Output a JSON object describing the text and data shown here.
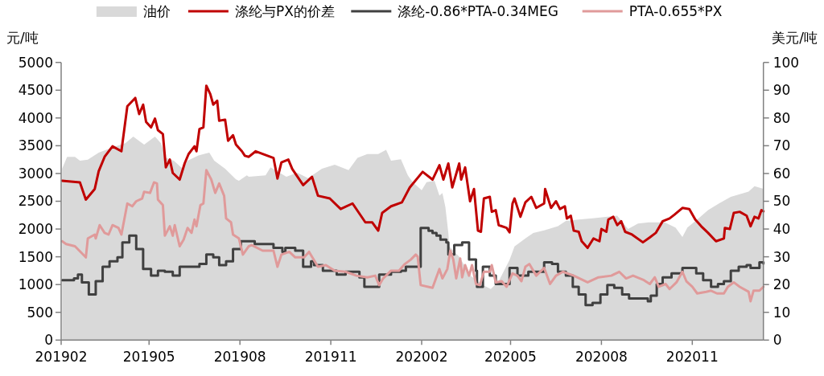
{
  "chart_data": {
    "type": "line",
    "ylabel": "元/吨",
    "y2label": "美元/吨",
    "legend": "top",
    "xlim": [
      "2019-02-01",
      "2021-01-12"
    ],
    "xticks": [
      {
        "value": "2019-02-01",
        "label": "201902"
      },
      {
        "value": "2019-05-01",
        "label": "201905"
      },
      {
        "value": "2019-08-01",
        "label": "201908"
      },
      {
        "value": "2019-11-01",
        "label": "201911"
      },
      {
        "value": "2020-02-01",
        "label": "202002"
      },
      {
        "value": "2020-05-01",
        "label": "202005"
      },
      {
        "value": "2020-08-01",
        "label": "202008"
      },
      {
        "value": "2020-11-01",
        "label": "202011"
      }
    ],
    "ylim": [
      0,
      5000
    ],
    "yticks": [
      0,
      500,
      1000,
      1500,
      2000,
      2500,
      3000,
      3500,
      4000,
      4500,
      5000
    ],
    "y2lim": [
      0,
      100
    ],
    "y2ticks": [
      0,
      10,
      20,
      30,
      40,
      50,
      60,
      70,
      80,
      90,
      100
    ],
    "series": [
      {
        "name": "油价",
        "type": "area",
        "axis": "y2",
        "color": "#d9d9d9",
        "x": [
          "2019-02-02",
          "2019-02-07",
          "2019-02-15",
          "2019-02-20",
          "2019-02-28",
          "2019-03-11",
          "2019-03-25",
          "2019-04-07",
          "2019-04-15",
          "2019-04-26",
          "2019-05-07",
          "2019-05-13",
          "2019-05-18",
          "2019-05-26",
          "2019-06-04",
          "2019-06-09",
          "2019-06-20",
          "2019-07-01",
          "2019-07-06",
          "2019-07-17",
          "2019-07-28",
          "2019-07-31",
          "2019-08-08",
          "2019-08-10",
          "2019-08-27",
          "2019-09-01",
          "2019-09-17",
          "2019-09-28",
          "2019-10-09",
          "2019-10-23",
          "2019-11-05",
          "2019-11-19",
          "2019-11-28",
          "2019-12-08",
          "2019-12-19",
          "2019-12-27",
          "2020-01-01",
          "2020-01-11",
          "2020-01-18",
          "2020-01-23",
          "2020-02-01",
          "2020-02-06",
          "2020-02-14",
          "2020-02-19",
          "2020-02-22",
          "2020-02-25",
          "2020-02-28",
          "2020-02-29",
          "2020-03-10",
          "2020-03-22",
          "2020-04-03",
          "2020-04-11",
          "2020-04-19",
          "2020-04-30",
          "2020-05-05",
          "2020-05-16",
          "2020-05-24",
          "2020-06-04",
          "2020-06-18",
          "2020-06-26",
          "2020-07-09",
          "2020-07-25",
          "2020-08-17",
          "2020-08-28",
          "2020-09-07",
          "2020-09-18",
          "2020-10-04",
          "2020-10-15",
          "2020-10-22",
          "2020-10-27",
          "2020-11-06",
          "2020-11-17",
          "2020-11-28",
          "2020-12-10",
          "2020-12-28",
          "2021-01-03",
          "2021-01-12"
        ],
        "values": [
          61.7,
          66,
          66,
          64.6,
          65,
          67.5,
          69.4,
          70.9,
          73.3,
          70.4,
          73.3,
          70.9,
          65.6,
          64.6,
          61.7,
          64.6,
          66.5,
          67.5,
          64.6,
          61.7,
          57.9,
          57.4,
          59.3,
          58.8,
          59.3,
          62.2,
          58.8,
          60.3,
          58.3,
          61.7,
          63.2,
          61.2,
          65.6,
          67,
          67,
          68.5,
          64.6,
          65.1,
          59.3,
          56.9,
          54,
          56.9,
          57.4,
          52,
          53,
          48,
          38.6,
          33.7,
          30,
          23,
          19.8,
          18.4,
          21.2,
          28.9,
          33.7,
          36.6,
          38.6,
          39.5,
          41,
          42.9,
          43.4,
          43.9,
          44.8,
          40,
          42,
          42.4,
          42.4,
          40.5,
          37.1,
          40.5,
          43.4,
          46.8,
          49.2,
          51.6,
          53.5,
          55.4,
          54.5
        ]
      },
      {
        "name": "涤纶与PX的价差",
        "color": "#c00000",
        "x": [
          "2019-02-02",
          "2019-02-20",
          "2019-02-26",
          "2019-03-07",
          "2019-03-11",
          "2019-03-17",
          "2019-03-25",
          "2019-04-03",
          "2019-04-09",
          "2019-04-17",
          "2019-04-21",
          "2019-04-25",
          "2019-04-28",
          "2019-05-03",
          "2019-05-07",
          "2019-05-10",
          "2019-05-15",
          "2019-05-18",
          "2019-05-22",
          "2019-05-25",
          "2019-06-01",
          "2019-06-06",
          "2019-06-10",
          "2019-06-16",
          "2019-06-18",
          "2019-06-21",
          "2019-06-25",
          "2019-06-28",
          "2019-07-02",
          "2019-07-05",
          "2019-07-09",
          "2019-07-11",
          "2019-07-17",
          "2019-07-20",
          "2019-07-25",
          "2019-07-28",
          "2019-08-03",
          "2019-08-06",
          "2019-08-10",
          "2019-08-17",
          "2019-09-04",
          "2019-09-08",
          "2019-09-12",
          "2019-09-19",
          "2019-09-23",
          "2019-10-04",
          "2019-10-13",
          "2019-10-19",
          "2019-10-31",
          "2019-11-11",
          "2019-11-23",
          "2019-12-06",
          "2019-12-13",
          "2019-12-19",
          "2019-12-23",
          "2020-01-01",
          "2020-01-12",
          "2020-01-20",
          "2020-02-02",
          "2020-02-12",
          "2020-02-19",
          "2020-02-23",
          "2020-02-28",
          "2020-03-03",
          "2020-03-10",
          "2020-03-12",
          "2020-03-16",
          "2020-03-21",
          "2020-03-25",
          "2020-03-29",
          "2020-04-01",
          "2020-04-04",
          "2020-04-10",
          "2020-04-12",
          "2020-04-16",
          "2020-04-19",
          "2020-04-27",
          "2020-04-30",
          "2020-05-03",
          "2020-05-05",
          "2020-05-11",
          "2020-05-16",
          "2020-05-22",
          "2020-05-27",
          "2020-06-04",
          "2020-06-05",
          "2020-06-11",
          "2020-06-16",
          "2020-06-20",
          "2020-06-25",
          "2020-06-27",
          "2020-07-01",
          "2020-07-04",
          "2020-07-09",
          "2020-07-12",
          "2020-07-18",
          "2020-07-24",
          "2020-07-30",
          "2020-08-01",
          "2020-08-06",
          "2020-08-08",
          "2020-08-13",
          "2020-08-17",
          "2020-08-21",
          "2020-08-25",
          "2020-09-01",
          "2020-09-12",
          "2020-09-19",
          "2020-09-25",
          "2020-10-02",
          "2020-10-09",
          "2020-10-14",
          "2020-10-22",
          "2020-10-29",
          "2020-11-04",
          "2020-11-10",
          "2020-11-17",
          "2020-11-25",
          "2020-12-03",
          "2020-12-04",
          "2020-12-09",
          "2020-12-13",
          "2020-12-19",
          "2020-12-26",
          "2020-12-30",
          "2021-01-03",
          "2021-01-07",
          "2021-01-10",
          "2021-01-12"
        ],
        "values": [
          2870,
          2840,
          2530,
          2720,
          3040,
          3300,
          3490,
          3400,
          4210,
          4360,
          4070,
          4240,
          3930,
          3830,
          3990,
          3780,
          3710,
          3110,
          3250,
          3010,
          2890,
          3180,
          3350,
          3490,
          3400,
          3800,
          3830,
          4580,
          4430,
          4240,
          4310,
          3950,
          3970,
          3590,
          3690,
          3520,
          3400,
          3320,
          3300,
          3400,
          3280,
          2910,
          3200,
          3250,
          3080,
          2790,
          2940,
          2600,
          2550,
          2360,
          2460,
          2120,
          2120,
          1970,
          2290,
          2410,
          2480,
          2750,
          3030,
          2890,
          3150,
          2890,
          3180,
          2750,
          3180,
          2890,
          3110,
          2500,
          2720,
          1970,
          1950,
          2550,
          2580,
          2310,
          2340,
          2070,
          2020,
          1940,
          2460,
          2550,
          2220,
          2480,
          2580,
          2380,
          2460,
          2720,
          2380,
          2500,
          2360,
          2410,
          2190,
          2240,
          1970,
          1950,
          1780,
          1660,
          1830,
          1780,
          2000,
          1950,
          2170,
          2220,
          2070,
          2140,
          1950,
          1900,
          1760,
          1850,
          1930,
          2140,
          2190,
          2260,
          2380,
          2360,
          2170,
          2050,
          1930,
          1780,
          1830,
          2020,
          2000,
          2290,
          2310,
          2240,
          2050,
          2220,
          2190,
          2340,
          2320
        ]
      },
      {
        "name": "涤纶-0.86*PTA-0.34MEG",
        "type": "step",
        "color": "#404040",
        "x": [
          "2019-02-02",
          "2019-02-14",
          "2019-02-18",
          "2019-02-22",
          "2019-03-01",
          "2019-03-08",
          "2019-03-15",
          "2019-03-22",
          "2019-03-30",
          "2019-04-04",
          "2019-04-11",
          "2019-04-18",
          "2019-04-25",
          "2019-05-03",
          "2019-05-10",
          "2019-05-17",
          "2019-05-25",
          "2019-06-01",
          "2019-06-21",
          "2019-06-28",
          "2019-07-05",
          "2019-07-11",
          "2019-07-18",
          "2019-07-25",
          "2019-08-02",
          "2019-08-16",
          "2019-09-04",
          "2019-09-13",
          "2019-09-16",
          "2019-09-26",
          "2019-10-04",
          "2019-10-12",
          "2019-10-15",
          "2019-10-24",
          "2019-11-07",
          "2019-11-16",
          "2019-11-30",
          "2019-12-05",
          "2019-12-20",
          "2020-01-01",
          "2020-01-11",
          "2020-01-16",
          "2020-01-31",
          "2020-02-08",
          "2020-02-12",
          "2020-02-16",
          "2020-02-20",
          "2020-02-26",
          "2020-02-28",
          "2020-03-05",
          "2020-03-13",
          "2020-03-20",
          "2020-03-27",
          "2020-03-28",
          "2020-04-03",
          "2020-04-10",
          "2020-04-16",
          "2020-04-30",
          "2020-05-08",
          "2020-05-19",
          "2020-06-04",
          "2020-06-12",
          "2020-06-18",
          "2020-06-26",
          "2020-07-03",
          "2020-07-09",
          "2020-07-16",
          "2020-07-23",
          "2020-07-31",
          "2020-08-07",
          "2020-08-14",
          "2020-08-22",
          "2020-08-29",
          "2020-09-17",
          "2020-09-20",
          "2020-09-26",
          "2020-10-02",
          "2020-10-11",
          "2020-10-22",
          "2020-11-05",
          "2020-11-12",
          "2020-11-20",
          "2020-11-27",
          "2020-12-03",
          "2020-12-10",
          "2020-12-18",
          "2020-12-26",
          "2020-12-30",
          "2021-01-08",
          "2021-01-12"
        ],
        "values": [
          1080,
          1110,
          1180,
          1040,
          820,
          1060,
          1320,
          1420,
          1490,
          1760,
          1880,
          1640,
          1280,
          1160,
          1250,
          1230,
          1160,
          1320,
          1370,
          1540,
          1490,
          1350,
          1420,
          1640,
          1780,
          1730,
          1660,
          1590,
          1660,
          1610,
          1320,
          1420,
          1350,
          1250,
          1180,
          1230,
          1130,
          960,
          1180,
          1230,
          1250,
          1320,
          2020,
          1970,
          1930,
          1880,
          1810,
          1760,
          1540,
          1710,
          1760,
          1450,
          1250,
          960,
          1320,
          1160,
          1010,
          1300,
          1160,
          1230,
          1400,
          1370,
          1230,
          1160,
          960,
          820,
          630,
          670,
          820,
          990,
          940,
          820,
          750,
          700,
          800,
          1010,
          1130,
          1200,
          1300,
          1200,
          1080,
          960,
          1010,
          1060,
          1250,
          1320,
          1350,
          1300,
          1400,
          1380
        ]
      },
      {
        "name": "PTA-0.655*PX",
        "color": "#e09a9a",
        "x": [
          "2019-02-02",
          "2019-02-06",
          "2019-02-15",
          "2019-02-26",
          "2019-02-28",
          "2019-03-07",
          "2019-03-08",
          "2019-03-12",
          "2019-03-17",
          "2019-03-21",
          "2019-03-25",
          "2019-03-31",
          "2019-04-03",
          "2019-04-09",
          "2019-04-14",
          "2019-04-18",
          "2019-04-24",
          "2019-04-26",
          "2019-05-02",
          "2019-05-06",
          "2019-05-09",
          "2019-05-10",
          "2019-05-15",
          "2019-05-17",
          "2019-05-22",
          "2019-05-25",
          "2019-05-27",
          "2019-06-01",
          "2019-06-05",
          "2019-06-09",
          "2019-06-13",
          "2019-06-16",
          "2019-06-18",
          "2019-06-22",
          "2019-06-25",
          "2019-06-28",
          "2019-07-03",
          "2019-07-07",
          "2019-07-11",
          "2019-07-16",
          "2019-07-18",
          "2019-07-23",
          "2019-07-25",
          "2019-07-31",
          "2019-08-04",
          "2019-08-10",
          "2019-08-13",
          "2019-08-24",
          "2019-09-04",
          "2019-09-08",
          "2019-09-12",
          "2019-09-20",
          "2019-09-26",
          "2019-10-05",
          "2019-10-10",
          "2019-10-19",
          "2019-10-27",
          "2019-11-05",
          "2019-11-16",
          "2019-11-27",
          "2019-12-08",
          "2019-12-16",
          "2019-12-20",
          "2019-12-24",
          "2020-01-01",
          "2020-01-09",
          "2020-01-15",
          "2020-01-21",
          "2020-01-26",
          "2020-01-28",
          "2020-01-31",
          "2020-02-12",
          "2020-02-19",
          "2020-02-22",
          "2020-02-27",
          "2020-03-01",
          "2020-03-04",
          "2020-03-07",
          "2020-03-11",
          "2020-03-13",
          "2020-03-16",
          "2020-03-20",
          "2020-03-23",
          "2020-03-27",
          "2020-03-31",
          "2020-04-04",
          "2020-04-10",
          "2020-04-12",
          "2020-04-16",
          "2020-04-22",
          "2020-04-27",
          "2020-05-03",
          "2020-05-08",
          "2020-05-12",
          "2020-05-16",
          "2020-05-20",
          "2020-05-27",
          "2020-06-04",
          "2020-06-10",
          "2020-06-16",
          "2020-06-23",
          "2020-07-04",
          "2020-07-18",
          "2020-07-29",
          "2020-08-11",
          "2020-08-19",
          "2020-08-26",
          "2020-09-02",
          "2020-09-13",
          "2020-09-19",
          "2020-09-24",
          "2020-09-28",
          "2020-10-05",
          "2020-10-09",
          "2020-10-16",
          "2020-10-22",
          "2020-10-26",
          "2020-11-01",
          "2020-11-06",
          "2020-11-15",
          "2020-11-20",
          "2020-11-26",
          "2020-12-03",
          "2020-12-07",
          "2020-12-13",
          "2020-12-19",
          "2020-12-28",
          "2020-12-30",
          "2021-01-02",
          "2021-01-08",
          "2021-01-12"
        ],
        "values": [
          1780,
          1730,
          1690,
          1490,
          1830,
          1900,
          1830,
          2070,
          1930,
          1900,
          2070,
          2020,
          1900,
          2460,
          2410,
          2500,
          2550,
          2670,
          2650,
          2840,
          2820,
          2530,
          2430,
          1880,
          2050,
          1880,
          2070,
          1690,
          1810,
          2020,
          1930,
          2170,
          2050,
          2430,
          2460,
          3060,
          2890,
          2650,
          2820,
          2600,
          2190,
          2120,
          1900,
          1830,
          1540,
          1690,
          1710,
          1610,
          1610,
          1320,
          1540,
          1590,
          1490,
          1490,
          1590,
          1320,
          1350,
          1250,
          1230,
          1160,
          1130,
          1160,
          990,
          1110,
          1250,
          1250,
          1370,
          1450,
          1540,
          1500,
          990,
          940,
          1280,
          1110,
          1280,
          1610,
          1450,
          1110,
          1470,
          1130,
          1350,
          1160,
          1350,
          1010,
          990,
          1230,
          1230,
          1350,
          1040,
          1060,
          960,
          1200,
          1160,
          1060,
          1320,
          1370,
          1160,
          1300,
          1010,
          1160,
          1230,
          1160,
          1040,
          1130,
          1160,
          1230,
          1110,
          1160,
          1080,
          1010,
          1130,
          960,
          1010,
          920,
          1040,
          1230,
          1060,
          960,
          840,
          870,
          890,
          840,
          840,
          960,
          1040,
          960,
          870,
          700,
          890,
          890,
          960
        ]
      }
    ]
  }
}
